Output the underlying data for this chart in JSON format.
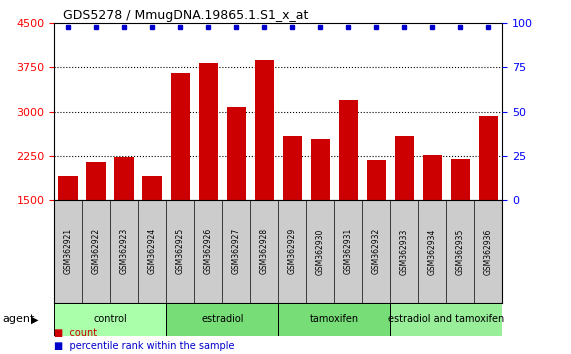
{
  "title": "GDS5278 / MmugDNA.19865.1.S1_x_at",
  "samples": [
    "GSM362921",
    "GSM362922",
    "GSM362923",
    "GSM362924",
    "GSM362925",
    "GSM362926",
    "GSM362927",
    "GSM362928",
    "GSM362929",
    "GSM362930",
    "GSM362931",
    "GSM362932",
    "GSM362933",
    "GSM362934",
    "GSM362935",
    "GSM362936"
  ],
  "counts": [
    1900,
    2150,
    2230,
    1900,
    3650,
    3830,
    3080,
    3880,
    2580,
    2530,
    3200,
    2170,
    2580,
    2270,
    2200,
    2920
  ],
  "bar_color": "#cc0000",
  "dot_color": "#0000cc",
  "ylim_left": [
    1500,
    4500
  ],
  "ylim_right": [
    0,
    100
  ],
  "yticks_left": [
    1500,
    2250,
    3000,
    3750,
    4500
  ],
  "yticks_right": [
    0,
    25,
    50,
    75,
    100
  ],
  "groups": [
    {
      "label": "control",
      "start": 0,
      "end": 4,
      "color": "#aaffaa"
    },
    {
      "label": "estradiol",
      "start": 4,
      "end": 8,
      "color": "#77dd77"
    },
    {
      "label": "tamoxifen",
      "start": 8,
      "end": 12,
      "color": "#77dd77"
    },
    {
      "label": "estradiol and tamoxifen",
      "start": 12,
      "end": 16,
      "color": "#99ee99"
    }
  ],
  "group_row_label": "agent",
  "legend_count_color": "#cc0000",
  "legend_dot_color": "#0000cc",
  "tick_area_bg": "#cccccc",
  "plot_bg": "#ffffff",
  "dotted_lines": [
    2250,
    3000,
    3750
  ],
  "bar_width": 0.7,
  "dot_pct": 0.975
}
